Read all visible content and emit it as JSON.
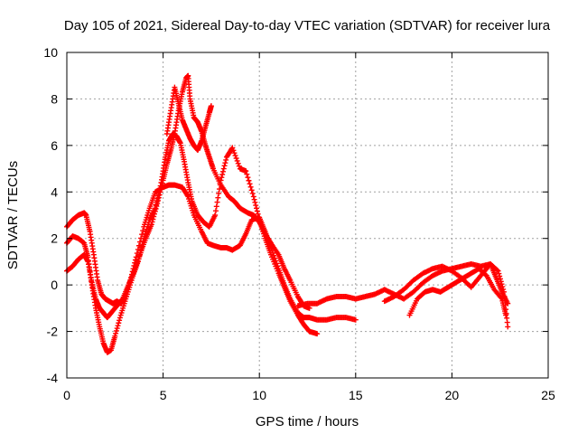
{
  "chart_data": {
    "type": "scatter",
    "title": "Day 105 of 2021, Sidereal Day-to-day VTEC variation (SDTVAR) for receiver lura",
    "xlabel": "GPS time / hours",
    "ylabel": "SDTVAR / TECUs",
    "xlim": [
      0,
      25
    ],
    "ylim": [
      -4,
      10
    ],
    "xticks": [
      "0",
      "5",
      "10",
      "15",
      "20",
      "25"
    ],
    "yticks": [
      "-4",
      "-2",
      "0",
      "2",
      "4",
      "6",
      "8",
      "10"
    ],
    "grid": true,
    "marker": "+",
    "color": "#ff0000",
    "series": [
      {
        "name": "trace-1",
        "x": [
          0.0,
          0.3,
          0.6,
          0.9,
          1.0,
          1.2,
          1.4,
          1.6,
          1.8,
          2.0,
          2.2,
          2.4,
          2.6,
          2.8,
          3.0,
          3.3,
          3.6,
          4.0,
          4.3,
          4.6,
          5.0,
          5.3,
          5.6,
          6.0,
          6.3,
          6.6,
          7.0,
          7.3,
          7.6,
          8.0,
          8.3,
          8.6,
          9.0,
          9.3,
          9.6,
          10.0,
          10.3,
          10.6,
          11.0,
          11.3,
          11.6,
          12.0,
          12.3,
          12.6,
          13.0,
          13.5,
          14.0,
          14.5,
          15.0
        ],
        "y": [
          2.5,
          2.8,
          3.0,
          3.1,
          3.0,
          2.3,
          1.3,
          0.2,
          -0.4,
          -0.6,
          -0.7,
          -0.8,
          -0.7,
          -0.8,
          -0.6,
          0.2,
          1.2,
          2.5,
          3.3,
          4.0,
          4.2,
          4.3,
          4.3,
          4.2,
          3.8,
          3.0,
          2.3,
          1.8,
          1.7,
          1.6,
          1.6,
          1.5,
          1.7,
          2.2,
          2.8,
          2.9,
          2.3,
          1.6,
          0.7,
          0.0,
          -0.6,
          -1.2,
          -1.4,
          -1.4,
          -1.5,
          -1.5,
          -1.4,
          -1.4,
          -1.5
        ]
      },
      {
        "name": "trace-2",
        "x": [
          0.0,
          0.3,
          0.6,
          0.9,
          1.1,
          1.3,
          1.5,
          1.7,
          1.9,
          2.1,
          2.3,
          2.5,
          2.8,
          3.1,
          3.4,
          3.7,
          4.0,
          4.3,
          4.6,
          4.9,
          5.1,
          5.3,
          5.5,
          5.7,
          5.9,
          6.1,
          6.3,
          6.5,
          6.8,
          7.1,
          7.4,
          7.7,
          8.0,
          8.3,
          8.6,
          9.0,
          9.3,
          9.7,
          10.0,
          10.3,
          10.6,
          11.0,
          11.3,
          11.6,
          12.0,
          12.3,
          12.6,
          13.0
        ],
        "y": [
          1.8,
          2.1,
          2.0,
          1.8,
          1.2,
          0.0,
          -1.0,
          -1.8,
          -2.5,
          -2.9,
          -2.8,
          -2.2,
          -1.3,
          -0.5,
          0.3,
          1.0,
          2.0,
          2.8,
          3.3,
          4.4,
          5.4,
          6.2,
          6.5,
          6.4,
          6.1,
          5.3,
          4.4,
          3.6,
          3.0,
          2.7,
          2.5,
          3.0,
          4.5,
          5.5,
          5.9,
          5.0,
          4.9,
          3.8,
          2.8,
          2.0,
          1.3,
          0.5,
          -0.1,
          -0.7,
          -1.3,
          -1.7,
          -2.0,
          -2.1
        ]
      },
      {
        "name": "trace-3",
        "x": [
          0.0,
          0.3,
          0.6,
          0.9,
          1.1,
          1.3,
          1.5,
          1.7,
          1.9,
          2.1,
          2.3,
          2.6,
          2.9,
          3.2,
          3.5,
          3.8,
          4.1,
          4.4,
          4.7,
          5.0,
          5.2,
          5.4,
          5.6,
          5.8,
          6.0,
          6.2,
          6.3,
          6.4,
          6.6,
          6.8,
          7.0,
          7.2,
          7.4,
          7.6,
          8.0,
          8.4,
          8.7,
          9.0,
          9.4,
          9.7,
          10.0,
          10.3,
          10.6,
          11.0,
          11.3,
          11.6,
          12.0,
          12.3,
          12.6
        ],
        "y": [
          0.6,
          0.8,
          1.1,
          1.3,
          1.0,
          0.1,
          -0.6,
          -1.0,
          -1.2,
          -1.4,
          -1.2,
          -0.9,
          -0.6,
          0.0,
          0.6,
          1.3,
          2.0,
          2.6,
          3.5,
          4.5,
          5.2,
          5.8,
          6.5,
          7.5,
          8.3,
          8.9,
          9.0,
          8.0,
          7.2,
          7.0,
          6.6,
          6.0,
          5.5,
          5.0,
          4.3,
          3.8,
          3.6,
          3.3,
          3.1,
          3.0,
          2.7,
          2.2,
          1.8,
          1.3,
          0.7,
          0.2,
          -0.5,
          -0.9,
          -1.0
        ]
      },
      {
        "name": "trace-4",
        "x": [
          5.2,
          5.4,
          5.6,
          5.8,
          6.0,
          6.2,
          6.4,
          6.6,
          6.8,
          7.0,
          7.2,
          7.4,
          7.5
        ],
        "y": [
          6.5,
          7.5,
          8.5,
          7.8,
          7.1,
          6.7,
          6.3,
          6.0,
          5.8,
          6.2,
          6.8,
          7.4,
          7.7
        ]
      },
      {
        "name": "trace-5",
        "x": [
          12.0,
          12.5,
          13.0,
          13.5,
          14.0,
          14.5,
          15.0,
          15.5,
          16.0,
          16.5,
          17.0,
          17.5,
          18.0,
          18.5,
          19.0,
          19.5,
          20.0,
          20.5,
          21.0,
          21.5,
          22.0,
          22.3,
          22.6,
          22.9
        ],
        "y": [
          -0.9,
          -0.8,
          -0.8,
          -0.6,
          -0.5,
          -0.5,
          -0.6,
          -0.5,
          -0.4,
          -0.2,
          -0.4,
          -0.6,
          -0.3,
          0.1,
          0.4,
          0.6,
          0.7,
          0.8,
          0.9,
          0.8,
          0.9,
          0.3,
          -0.3,
          -0.8
        ]
      },
      {
        "name": "trace-6",
        "x": [
          17.8,
          18.2,
          18.6,
          19.0,
          19.4,
          19.8,
          20.2,
          20.6,
          21.0,
          21.4,
          21.8,
          22.2,
          22.6,
          22.8
        ],
        "y": [
          -1.3,
          -0.6,
          -0.3,
          -0.2,
          -0.3,
          -0.1,
          0.1,
          0.3,
          0.5,
          0.7,
          0.4,
          -0.2,
          -0.6,
          -1.3
        ]
      },
      {
        "name": "trace-7",
        "x": [
          16.5,
          17.0,
          17.5,
          18.0,
          18.5,
          19.0,
          19.5,
          20.0,
          20.5,
          21.0,
          21.5,
          22.0,
          22.4,
          22.7,
          22.9
        ],
        "y": [
          -0.7,
          -0.5,
          -0.2,
          0.2,
          0.5,
          0.7,
          0.8,
          0.6,
          0.3,
          -0.1,
          0.4,
          0.9,
          0.6,
          -0.3,
          -1.8
        ]
      }
    ]
  }
}
